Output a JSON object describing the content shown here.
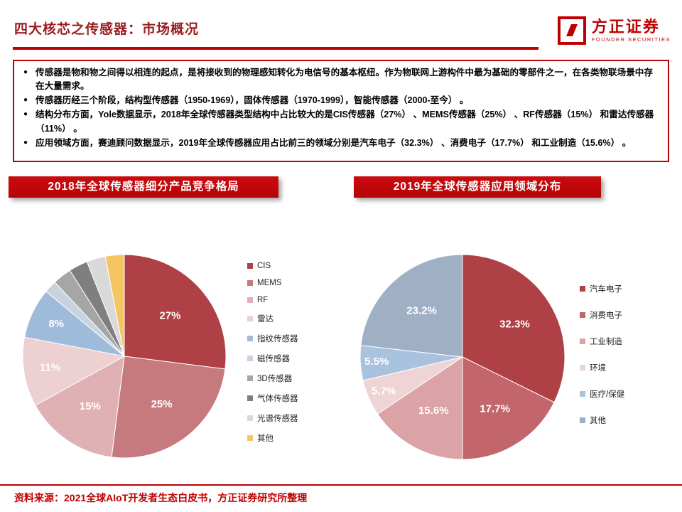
{
  "theme": {
    "accent": "#C00000"
  },
  "header": {
    "title": "四大核芯之传感器：市场概况",
    "logo": {
      "brand": "方正证券",
      "subbrand": "FOUNDER SECURITIES"
    }
  },
  "summary_box": {
    "bullets": [
      "传感器是物和物之间得以相连的起点，是将接收到的物理感知转化为电信号的基本枢纽。作为物联网上游构件中最为基础的零部件之一，在各类物联场景中存在大量需求。",
      "传感器历经三个阶段，结构型传感器（1950-1969），固体传感器（1970-1999），智能传感器（2000-至今） 。",
      "结构分布方面，Yole数据显示，2018年全球传感器类型结构中占比较大的是CIS传感器（27%） 、MEMS传感器（25%） 、RF传感器（15%） 和雷达传感器（11%） 。",
      "应用领域方面，赛迪顾问数据显示，2019年全球传感器应用占比前三的领域分别是汽车电子（32.3%） 、消费电子（17.7%） 和工业制造（15.6%） 。"
    ]
  },
  "chart_data": [
    {
      "type": "pie",
      "title": "2018年全球传感器细分产品竞争格局",
      "legend_position": "right",
      "slices": [
        {
          "name": "CIS",
          "value": 27,
          "label": "27%",
          "color": "#AF4046"
        },
        {
          "name": "MEMS",
          "value": 25,
          "label": "25%",
          "color": "#C67A7E"
        },
        {
          "name": "RF",
          "value": 15,
          "label": "15%",
          "color": "#E0B1B4"
        },
        {
          "name": "雷达",
          "value": 11,
          "label": "11%",
          "color": "#ECD0D2"
        },
        {
          "name": "指纹传感器",
          "value": 8,
          "label": "8%",
          "color": "#9FBBDA"
        },
        {
          "name": "磁传感器",
          "value": 2,
          "color": "#C9D3DF"
        },
        {
          "name": "3D传感器",
          "value": 3,
          "color": "#A6A6A6"
        },
        {
          "name": "气体传感器",
          "value": 3,
          "color": "#7F7F7F"
        },
        {
          "name": "光谱传感器",
          "value": 3,
          "color": "#D9D9D9"
        },
        {
          "name": "其他",
          "value": 3,
          "color": "#F5C563"
        }
      ]
    },
    {
      "type": "pie",
      "title": "2019年全球传感器应用领域分布",
      "legend_position": "right",
      "slices": [
        {
          "name": "汽车电子",
          "value": 32.3,
          "label": "32.3%",
          "color": "#AF4046"
        },
        {
          "name": "消费电子",
          "value": 17.7,
          "label": "17.7%",
          "color": "#C2666B"
        },
        {
          "name": "工业制造",
          "value": 15.6,
          "label": "15.6%",
          "color": "#DCA3A6"
        },
        {
          "name": "环境",
          "value": 5.7,
          "label": "5.7%",
          "color": "#EFD4D5"
        },
        {
          "name": "医疗/保健",
          "value": 5.5,
          "label": "5.5%",
          "color": "#A9C3DE"
        },
        {
          "name": "其他",
          "value": 23.2,
          "label": "23.2%",
          "color": "#9FB0C5"
        }
      ]
    }
  ],
  "footer": {
    "source": "资料来源：2021全球AIoT开发者生态白皮书，方正证券研究所整理"
  }
}
